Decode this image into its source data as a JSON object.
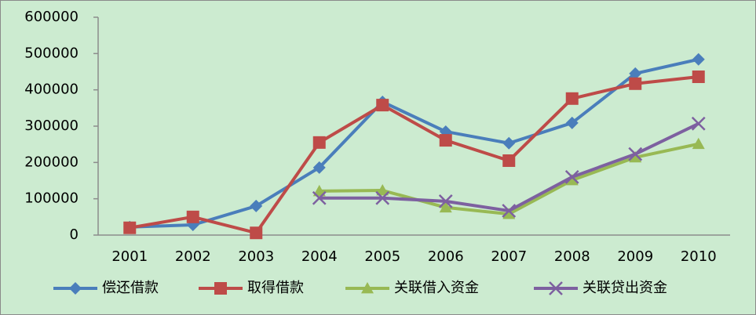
{
  "chart_data": {
    "type": "line",
    "categories": [
      "2001",
      "2002",
      "2003",
      "2004",
      "2005",
      "2006",
      "2007",
      "2008",
      "2009",
      "2010"
    ],
    "series": [
      {
        "name": "偿还借款",
        "color": "#4a7ebb",
        "marker": "diamond",
        "values": [
          22000,
          28000,
          80000,
          186000,
          367000,
          285000,
          253000,
          309000,
          445000,
          484000
        ]
      },
      {
        "name": "取得借款",
        "color": "#be4b48",
        "marker": "square",
        "values": [
          20000,
          50000,
          6000,
          255000,
          358000,
          261000,
          205000,
          376000,
          417000,
          436000
        ]
      },
      {
        "name": "关联借入资金",
        "color": "#98b954",
        "marker": "triangle",
        "values": [
          null,
          null,
          null,
          121000,
          123000,
          76000,
          58000,
          151000,
          214000,
          251000
        ]
      },
      {
        "name": "关联贷出资金",
        "color": "#7d60a0",
        "marker": "x",
        "values": [
          null,
          null,
          null,
          102000,
          102000,
          93000,
          67000,
          160000,
          223000,
          307000
        ]
      }
    ],
    "ylim": [
      0,
      600000
    ],
    "yticks": [
      0,
      100000,
      200000,
      300000,
      400000,
      500000,
      600000
    ],
    "grid": false,
    "legend": "bottom"
  }
}
